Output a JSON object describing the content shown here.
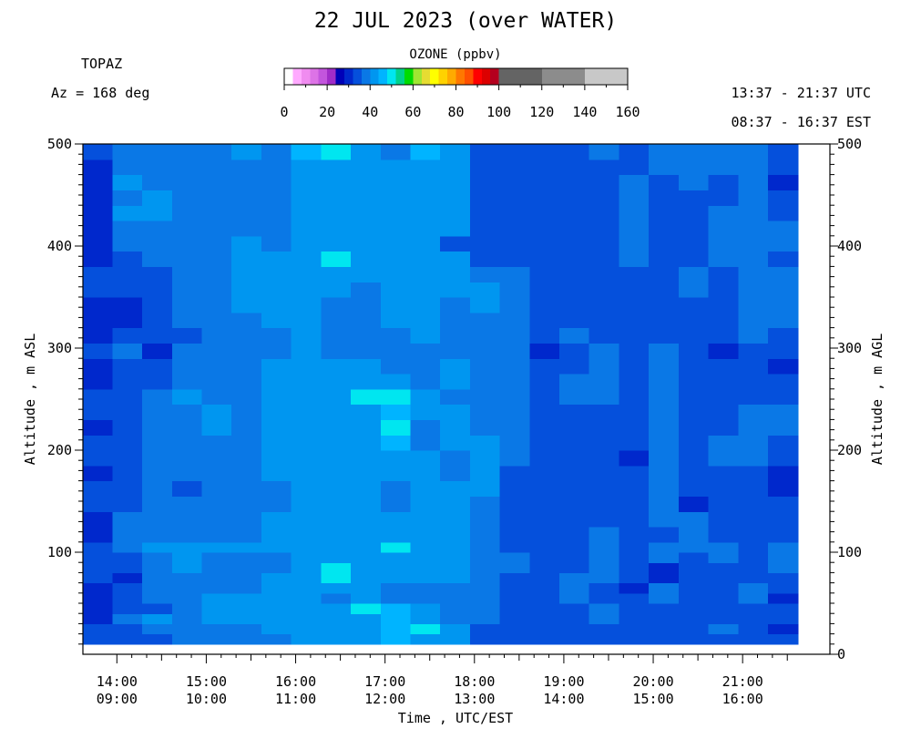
{
  "title": "22 JUL 2023 (over WATER)",
  "instrument": "TOPAZ",
  "azimuth": "Az = 168 deg",
  "utc_range": "13:37 - 21:37 UTC",
  "est_range": "08:37 - 16:37 EST",
  "chart_data": {
    "type": "heatmap",
    "title": "22 JUL 2023 (over WATER)",
    "xlabel": "Time , UTC/EST",
    "ylabel_left": "Altitude , m ASL",
    "ylabel_right": "Altitude , m AGL",
    "xlim_utc_hours": [
      13.62,
      21.62
    ],
    "ylim_left": [
      0,
      500
    ],
    "ylim_right": [
      0,
      500
    ],
    "x_ticks": [
      {
        "hour": 14,
        "utc": "14:00",
        "est": "09:00"
      },
      {
        "hour": 15,
        "utc": "15:00",
        "est": "10:00"
      },
      {
        "hour": 16,
        "utc": "16:00",
        "est": "11:00"
      },
      {
        "hour": 17,
        "utc": "17:00",
        "est": "12:00"
      },
      {
        "hour": 18,
        "utc": "18:00",
        "est": "13:00"
      },
      {
        "hour": 19,
        "utc": "19:00",
        "est": "14:00"
      },
      {
        "hour": 20,
        "utc": "20:00",
        "est": "15:00"
      },
      {
        "hour": 21,
        "utc": "21:00",
        "est": "16:00"
      }
    ],
    "y_ticks_left": [
      100,
      200,
      300,
      400,
      500
    ],
    "y_ticks_right": [
      0,
      100,
      200,
      300,
      400,
      500
    ],
    "colorbar": {
      "title": "OZONE (ppbv)",
      "ticks": [
        0,
        20,
        40,
        60,
        80,
        100,
        120,
        140,
        160
      ],
      "bins": [
        {
          "lo": 0,
          "hi": 4,
          "color": "#ffffff"
        },
        {
          "lo": 4,
          "hi": 8,
          "color": "#ffaaff"
        },
        {
          "lo": 8,
          "hi": 12,
          "color": "#f08cf0"
        },
        {
          "lo": 12,
          "hi": 16,
          "color": "#dd73e6"
        },
        {
          "lo": 16,
          "hi": 20,
          "color": "#c355dd"
        },
        {
          "lo": 20,
          "hi": 24,
          "color": "#a02cc8"
        },
        {
          "lo": 24,
          "hi": 28,
          "color": "#0000b8"
        },
        {
          "lo": 28,
          "hi": 32,
          "color": "#0028cc"
        },
        {
          "lo": 32,
          "hi": 36,
          "color": "#0550dc"
        },
        {
          "lo": 36,
          "hi": 40,
          "color": "#0a78e6"
        },
        {
          "lo": 40,
          "hi": 44,
          "color": "#0096f0"
        },
        {
          "lo": 44,
          "hi": 48,
          "color": "#00b4ff"
        },
        {
          "lo": 48,
          "hi": 52,
          "color": "#00e6f0"
        },
        {
          "lo": 52,
          "hi": 56,
          "color": "#00d28c"
        },
        {
          "lo": 56,
          "hi": 60,
          "color": "#00dc00"
        },
        {
          "lo": 60,
          "hi": 64,
          "color": "#a0e632"
        },
        {
          "lo": 64,
          "hi": 68,
          "color": "#e6dc32"
        },
        {
          "lo": 68,
          "hi": 72,
          "color": "#ffff00"
        },
        {
          "lo": 72,
          "hi": 76,
          "color": "#ffd200"
        },
        {
          "lo": 76,
          "hi": 80,
          "color": "#ffaa00"
        },
        {
          "lo": 80,
          "hi": 84,
          "color": "#ff7800"
        },
        {
          "lo": 84,
          "hi": 88,
          "color": "#ff5000"
        },
        {
          "lo": 88,
          "hi": 92,
          "color": "#ff0000"
        },
        {
          "lo": 92,
          "hi": 96,
          "color": "#dc0000"
        },
        {
          "lo": 96,
          "hi": 100,
          "color": "#b4001e"
        },
        {
          "lo": 100,
          "hi": 120,
          "color": "#646464"
        },
        {
          "lo": 120,
          "hi": 140,
          "color": "#8c8c8c"
        },
        {
          "lo": 140,
          "hi": 160,
          "color": "#c8c8c8"
        }
      ]
    },
    "altitude_bin_edges_m": [
      10,
      20,
      30,
      40,
      50,
      60,
      70,
      80,
      90,
      100,
      110,
      125,
      140,
      155,
      170,
      185,
      200,
      215,
      230,
      245,
      260,
      275,
      290,
      305,
      320,
      335,
      350,
      365,
      380,
      395,
      410,
      425,
      440,
      455,
      470,
      485,
      500
    ],
    "columns": [
      {
        "start_utc": "13:37",
        "end_utc": "13:57",
        "ozone_ppbv": [
          33,
          33,
          31,
          31,
          31,
          31,
          33,
          33,
          33,
          33,
          31,
          31,
          33,
          33,
          31,
          33,
          33,
          31,
          33,
          33,
          31,
          31,
          33,
          31,
          31,
          31,
          33,
          33,
          31,
          31,
          31,
          31,
          31,
          31,
          31,
          33
        ]
      },
      {
        "start_utc": "13:57",
        "end_utc": "14:17",
        "ozone_ppbv": [
          33,
          33,
          37,
          33,
          33,
          33,
          31,
          33,
          33,
          37,
          37,
          37,
          33,
          33,
          33,
          33,
          33,
          33,
          33,
          33,
          33,
          33,
          37,
          33,
          31,
          31,
          33,
          33,
          33,
          37,
          37,
          41,
          37,
          41,
          37,
          37
        ]
      },
      {
        "start_utc": "14:17",
        "end_utc": "14:37",
        "ozone_ppbv": [
          33,
          37,
          41,
          33,
          37,
          37,
          37,
          37,
          37,
          41,
          37,
          37,
          37,
          37,
          37,
          37,
          37,
          37,
          37,
          37,
          33,
          33,
          29,
          33,
          33,
          33,
          33,
          33,
          37,
          37,
          37,
          41,
          41,
          37,
          37,
          37
        ]
      },
      {
        "start_utc": "14:37",
        "end_utc": "14:57",
        "ozone_ppbv": [
          37,
          37,
          37,
          37,
          37,
          37,
          37,
          41,
          41,
          41,
          37,
          37,
          37,
          33,
          37,
          37,
          37,
          37,
          37,
          41,
          37,
          37,
          37,
          33,
          37,
          37,
          37,
          37,
          37,
          37,
          37,
          37,
          37,
          37,
          37,
          37
        ]
      },
      {
        "start_utc": "14:57",
        "end_utc": "15:17",
        "ozone_ppbv": [
          37,
          37,
          41,
          41,
          41,
          37,
          37,
          37,
          37,
          41,
          37,
          37,
          37,
          37,
          37,
          37,
          37,
          41,
          41,
          37,
          37,
          37,
          37,
          37,
          37,
          37,
          37,
          37,
          37,
          37,
          37,
          37,
          37,
          37,
          37,
          37
        ]
      },
      {
        "start_utc": "15:17",
        "end_utc": "15:37",
        "ozone_ppbv": [
          37,
          37,
          41,
          41,
          41,
          37,
          37,
          37,
          37,
          41,
          37,
          37,
          37,
          37,
          37,
          37,
          37,
          37,
          37,
          37,
          37,
          37,
          37,
          37,
          37,
          41,
          41,
          41,
          41,
          41,
          37,
          37,
          37,
          37,
          37,
          41
        ]
      },
      {
        "start_utc": "15:37",
        "end_utc": "15:57",
        "ozone_ppbv": [
          37,
          41,
          41,
          41,
          41,
          41,
          41,
          37,
          37,
          41,
          41,
          41,
          37,
          37,
          41,
          41,
          41,
          41,
          41,
          41,
          41,
          41,
          37,
          37,
          41,
          41,
          41,
          41,
          41,
          37,
          37,
          37,
          37,
          37,
          37,
          37
        ]
      },
      {
        "start_utc": "15:57",
        "end_utc": "16:17",
        "ozone_ppbv": [
          41,
          41,
          41,
          41,
          41,
          41,
          41,
          41,
          41,
          41,
          41,
          41,
          41,
          41,
          41,
          41,
          41,
          41,
          41,
          41,
          41,
          41,
          41,
          41,
          41,
          41,
          41,
          41,
          41,
          41,
          41,
          41,
          41,
          41,
          41,
          44
        ]
      },
      {
        "start_utc": "16:17",
        "end_utc": "16:37",
        "ozone_ppbv": [
          41,
          41,
          41,
          41,
          37,
          41,
          48,
          48,
          41,
          41,
          41,
          41,
          41,
          41,
          41,
          41,
          41,
          41,
          41,
          41,
          41,
          41,
          37,
          37,
          37,
          37,
          41,
          41,
          48,
          41,
          41,
          41,
          41,
          41,
          41,
          48
        ]
      },
      {
        "start_utc": "16:37",
        "end_utc": "16:57",
        "ozone_ppbv": [
          41,
          41,
          41,
          48,
          41,
          41,
          41,
          41,
          41,
          41,
          41,
          41,
          41,
          41,
          41,
          41,
          41,
          41,
          41,
          48,
          41,
          41,
          37,
          37,
          37,
          37,
          37,
          41,
          41,
          41,
          41,
          41,
          41,
          41,
          41,
          41
        ]
      },
      {
        "start_utc": "16:57",
        "end_utc": "17:17",
        "ozone_ppbv": [
          44,
          44,
          44,
          44,
          37,
          37,
          41,
          41,
          41,
          48,
          41,
          41,
          37,
          37,
          41,
          41,
          44,
          48,
          44,
          48,
          41,
          37,
          37,
          37,
          41,
          41,
          41,
          41,
          41,
          41,
          41,
          41,
          41,
          41,
          41,
          37
        ]
      },
      {
        "start_utc": "17:17",
        "end_utc": "17:37",
        "ozone_ppbv": [
          41,
          48,
          41,
          41,
          37,
          37,
          41,
          41,
          41,
          41,
          41,
          41,
          41,
          41,
          41,
          41,
          37,
          37,
          41,
          41,
          37,
          37,
          37,
          41,
          41,
          41,
          41,
          41,
          41,
          41,
          41,
          41,
          41,
          41,
          41,
          44
        ]
      },
      {
        "start_utc": "17:37",
        "end_utc": "17:57",
        "ozone_ppbv": [
          41,
          41,
          37,
          37,
          37,
          37,
          41,
          41,
          41,
          41,
          41,
          41,
          41,
          41,
          37,
          37,
          41,
          41,
          41,
          37,
          41,
          41,
          37,
          37,
          37,
          37,
          41,
          41,
          41,
          33,
          41,
          41,
          41,
          41,
          41,
          41
        ]
      },
      {
        "start_utc": "17:57",
        "end_utc": "18:17",
        "ozone_ppbv": [
          33,
          33,
          37,
          37,
          37,
          37,
          37,
          37,
          37,
          37,
          37,
          37,
          37,
          41,
          41,
          41,
          41,
          37,
          37,
          37,
          37,
          37,
          37,
          37,
          37,
          41,
          41,
          37,
          33,
          33,
          33,
          33,
          33,
          33,
          33,
          33
        ]
      },
      {
        "start_utc": "18:17",
        "end_utc": "18:37",
        "ozone_ppbv": [
          33,
          33,
          33,
          33,
          33,
          33,
          33,
          37,
          37,
          33,
          33,
          33,
          33,
          33,
          33,
          37,
          37,
          37,
          37,
          37,
          37,
          37,
          37,
          37,
          37,
          37,
          37,
          37,
          33,
          33,
          33,
          33,
          33,
          33,
          33,
          33
        ]
      },
      {
        "start_utc": "18:37",
        "end_utc": "18:57",
        "ozone_ppbv": [
          33,
          33,
          33,
          33,
          33,
          33,
          33,
          33,
          33,
          33,
          33,
          33,
          33,
          33,
          33,
          33,
          33,
          33,
          33,
          33,
          33,
          33,
          29,
          33,
          33,
          33,
          33,
          33,
          33,
          33,
          33,
          33,
          33,
          33,
          33,
          33
        ]
      },
      {
        "start_utc": "18:57",
        "end_utc": "19:17",
        "ozone_ppbv": [
          33,
          33,
          33,
          33,
          37,
          37,
          37,
          33,
          33,
          33,
          33,
          33,
          33,
          33,
          33,
          33,
          33,
          33,
          33,
          37,
          37,
          33,
          33,
          37,
          33,
          33,
          33,
          33,
          33,
          33,
          33,
          33,
          33,
          33,
          33,
          33
        ]
      },
      {
        "start_utc": "19:17",
        "end_utc": "19:37",
        "ozone_ppbv": [
          33,
          33,
          37,
          37,
          33,
          33,
          37,
          37,
          37,
          37,
          37,
          33,
          33,
          33,
          33,
          33,
          33,
          33,
          33,
          37,
          37,
          37,
          37,
          33,
          33,
          33,
          33,
          33,
          33,
          33,
          33,
          33,
          33,
          33,
          33,
          37
        ]
      },
      {
        "start_utc": "19:37",
        "end_utc": "19:57",
        "ozone_ppbv": [
          33,
          33,
          33,
          33,
          33,
          31,
          33,
          33,
          33,
          33,
          33,
          33,
          33,
          33,
          33,
          29,
          33,
          33,
          33,
          33,
          33,
          33,
          33,
          33,
          33,
          33,
          33,
          33,
          37,
          37,
          37,
          37,
          37,
          37,
          33,
          33
        ]
      },
      {
        "start_utc": "19:57",
        "end_utc": "20:17",
        "ozone_ppbv": [
          33,
          33,
          33,
          33,
          37,
          37,
          31,
          31,
          37,
          37,
          33,
          37,
          37,
          37,
          37,
          37,
          37,
          37,
          37,
          37,
          37,
          37,
          37,
          33,
          33,
          33,
          33,
          33,
          33,
          33,
          33,
          33,
          33,
          33,
          37,
          37
        ]
      },
      {
        "start_utc": "20:17",
        "end_utc": "20:37",
        "ozone_ppbv": [
          33,
          33,
          33,
          33,
          33,
          33,
          33,
          33,
          33,
          37,
          37,
          37,
          31,
          33,
          33,
          33,
          33,
          33,
          33,
          33,
          33,
          33,
          33,
          33,
          33,
          33,
          37,
          37,
          33,
          33,
          33,
          33,
          33,
          37,
          37,
          37
        ]
      },
      {
        "start_utc": "20:37",
        "end_utc": "20:57",
        "ozone_ppbv": [
          33,
          37,
          33,
          33,
          33,
          33,
          33,
          33,
          37,
          37,
          33,
          33,
          33,
          33,
          33,
          37,
          37,
          33,
          33,
          33,
          33,
          33,
          29,
          33,
          33,
          33,
          33,
          33,
          37,
          37,
          37,
          37,
          33,
          33,
          37,
          37
        ]
      },
      {
        "start_utc": "20:57",
        "end_utc": "21:17",
        "ozone_ppbv": [
          33,
          33,
          33,
          33,
          37,
          37,
          33,
          33,
          33,
          33,
          33,
          33,
          33,
          33,
          33,
          37,
          37,
          37,
          37,
          33,
          33,
          33,
          33,
          37,
          37,
          37,
          37,
          37,
          37,
          37,
          37,
          37,
          37,
          37,
          37,
          37
        ]
      },
      {
        "start_utc": "21:17",
        "end_utc": "21:37",
        "ozone_ppbv": [
          33,
          29,
          33,
          33,
          31,
          33,
          33,
          37,
          37,
          37,
          33,
          33,
          33,
          31,
          31,
          33,
          33,
          37,
          37,
          33,
          33,
          31,
          33,
          33,
          37,
          37,
          37,
          37,
          33,
          37,
          37,
          33,
          33,
          31,
          33,
          33
        ]
      }
    ]
  }
}
